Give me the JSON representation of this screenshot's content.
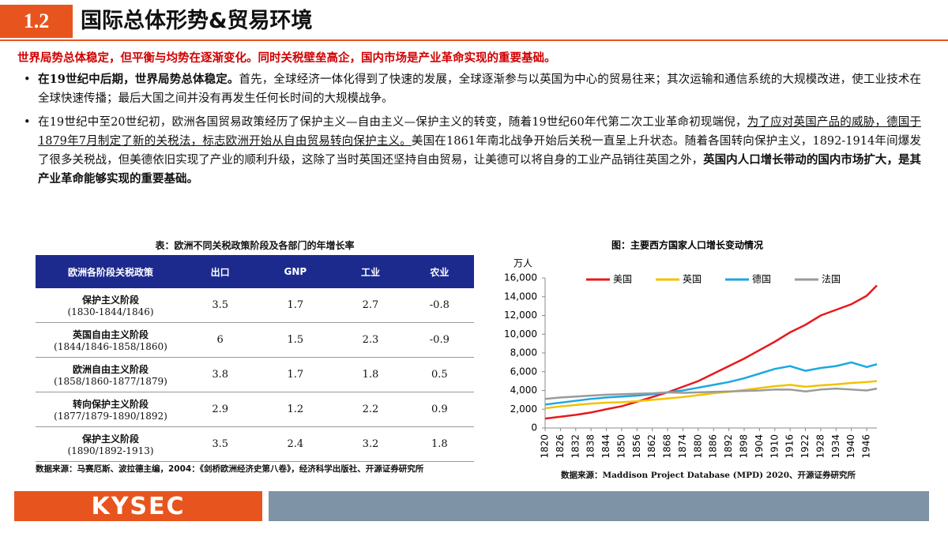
{
  "header": {
    "number": "1.2",
    "title": "国际总体形势&贸易环境"
  },
  "headline": "世界局势总体稳定，但平衡与均势在逐渐变化。同时关税壁垒高企，国内市场是产业革命实现的重要基础。",
  "bullets": [
    [
      {
        "text": "在19世纪中后期，世界局势总体稳定。",
        "style": "bold"
      },
      {
        "text": "首先，全球经济一体化得到了快速的发展，全球逐渐参与以英国为中心的贸易往来；其次运输和通信系统的大规模改进，使工业技术在全球快速传播；最后大国之间并没有再发生任何长时间的大规模战争。",
        "style": "normal"
      }
    ],
    [
      {
        "text": "在19世纪中至20世纪初，欧洲各国贸易政策经历了保护主义—自由主义—保护主义的转变，随着19世纪60年代第二次工业革命初现端倪，",
        "style": "normal"
      },
      {
        "text": "为了应对英国产品的威胁，德国于1879年7月制定了新的关税法，标志欧洲开始从自由贸易转向保护主义。",
        "style": "underline"
      },
      {
        "text": "美国在1861年南北战争开始后关税一直呈上升状态。随着各国转向保护主义，1892-1914年间爆发了很多关税战，但美德依旧实现了产业的顺利升级，这除了当时英国还坚持自由贸易，让美德可以将自身的工业产品销往英国之外，",
        "style": "normal"
      },
      {
        "text": "英国内人口增长带动的国内市场扩大，是其产业革命能够实现的重要基础。",
        "style": "bold"
      }
    ]
  ],
  "table": {
    "title": "表：欧洲不同关税政策阶段及各部门的年增长率",
    "columns": [
      "欧洲各阶段关税政策",
      "出口",
      "GNP",
      "工业",
      "农业"
    ],
    "rows": [
      [
        "保护主义阶段",
        "(1830-1844/1846)",
        "3.5",
        "1.7",
        "2.7",
        "-0.8"
      ],
      [
        "英国自由主义阶段",
        "(1844/1846-1858/1860)",
        "6",
        "1.5",
        "2.3",
        "-0.9"
      ],
      [
        "欧洲自由主义阶段",
        "(1858/1860-1877/1879)",
        "3.8",
        "1.7",
        "1.8",
        "0.5"
      ],
      [
        "转向保护主义阶段",
        "(1877/1879-1890/1892)",
        "2.9",
        "1.2",
        "2.2",
        "0.9"
      ],
      [
        "保护主义阶段",
        "(1890/1892-1913)",
        "3.5",
        "2.4",
        "3.2",
        "1.8"
      ]
    ],
    "source": "数据来源：马赛厄斯、波拉德主编，2004：《剑桥欧洲经济史第八卷》，经济科学出版社、开源证券研究所"
  },
  "chart_data": {
    "type": "line",
    "title": "图：主要西方国家人口增长变动情况",
    "y_label": "万人",
    "x": [
      1820,
      1826,
      1832,
      1838,
      1844,
      1850,
      1856,
      1862,
      1868,
      1874,
      1880,
      1886,
      1892,
      1898,
      1904,
      1910,
      1916,
      1922,
      1928,
      1934,
      1940,
      1946,
      1950
    ],
    "series": [
      {
        "name": "美国",
        "color": "#e8191c",
        "values": [
          1000,
          1200,
          1400,
          1650,
          2000,
          2320,
          2800,
          3300,
          3800,
          4400,
          5000,
          5800,
          6600,
          7400,
          8300,
          9200,
          10200,
          11000,
          12000,
          12600,
          13200,
          14100,
          15200
        ]
      },
      {
        "name": "英国",
        "color": "#f2c200",
        "values": [
          2100,
          2300,
          2450,
          2600,
          2700,
          2750,
          2850,
          3000,
          3150,
          3300,
          3500,
          3700,
          3850,
          4050,
          4250,
          4450,
          4600,
          4400,
          4550,
          4650,
          4800,
          4900,
          5000
        ]
      },
      {
        "name": "德国",
        "color": "#1ea7e1",
        "values": [
          2500,
          2700,
          2900,
          3100,
          3250,
          3350,
          3450,
          3600,
          3800,
          4000,
          4300,
          4600,
          4900,
          5300,
          5800,
          6300,
          6600,
          6100,
          6400,
          6600,
          7000,
          6500,
          6800
        ]
      },
      {
        "name": "法国",
        "color": "#9a9a9a",
        "values": [
          3100,
          3250,
          3350,
          3450,
          3550,
          3600,
          3650,
          3700,
          3800,
          3750,
          3800,
          3850,
          3900,
          3950,
          4000,
          4100,
          4100,
          3900,
          4100,
          4200,
          4100,
          4000,
          4200
        ]
      }
    ],
    "xlim": [
      1820,
      1950
    ],
    "xticks": [
      1820,
      1826,
      1832,
      1838,
      1844,
      1850,
      1856,
      1862,
      1868,
      1874,
      1880,
      1886,
      1892,
      1898,
      1904,
      1910,
      1916,
      1922,
      1928,
      1934,
      1940,
      1946
    ],
    "ylim": [
      0,
      16000
    ],
    "yticks": [
      0,
      {
        "value": 2000,
        "label": "2,000"
      },
      {
        "value": 4000,
        "label": "4,000"
      },
      {
        "value": 6000,
        "label": "6,000"
      },
      {
        "value": 8000,
        "label": "8,000"
      },
      {
        "value": 10000,
        "label": "10,000"
      },
      {
        "value": 12000,
        "label": "12,000"
      },
      {
        "value": 14000,
        "label": "14,000"
      },
      {
        "value": 16000,
        "label": "16,000"
      }
    ],
    "legend": "top",
    "source": "数据来源：Maddison Project Database (MPD) 2020、开源证券研究所"
  },
  "footer": {
    "logo": "KYSEC"
  }
}
